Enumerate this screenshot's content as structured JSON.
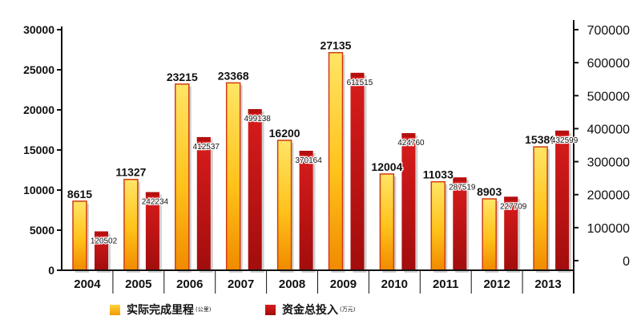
{
  "chart_data": {
    "type": "bar",
    "categories": [
      "2004",
      "2005",
      "2006",
      "2007",
      "2008",
      "2009",
      "2010",
      "2011",
      "2012",
      "2013"
    ],
    "series": [
      {
        "name": "实际完成里程",
        "unit": "(公里)",
        "axis": "left",
        "values": [
          8615,
          11327,
          23215,
          23368,
          16200,
          27135,
          12004,
          11033,
          8903,
          15386
        ],
        "labels": [
          "8615",
          "11327",
          "23215",
          "23368",
          "16200",
          "27135",
          "12004",
          "11033",
          "8903",
          "15386"
        ]
      },
      {
        "name": "资金总投入",
        "unit": "(万元)",
        "axis": "right",
        "values": [
          120502,
          242234,
          412537,
          499138,
          370164,
          611515,
          424760,
          287519,
          227709,
          432599
        ],
        "labels": [
          "120502",
          "242234",
          "412537",
          "499138",
          "370164",
          "611515",
          "424760",
          "287519",
          "227709",
          "432599"
        ]
      }
    ],
    "y_left": {
      "ylim": [
        0,
        30000
      ],
      "ticks": [
        0,
        5000,
        10000,
        15000,
        20000,
        25000,
        30000
      ],
      "tick_labels": [
        "0",
        "5000",
        "10000",
        "15000",
        "20000",
        "25000",
        "30000"
      ]
    },
    "y_right": {
      "ylim": [
        0,
        800000
      ],
      "ticks": [
        0,
        100000,
        200000,
        300000,
        400000,
        500000,
        600000,
        700000
      ],
      "tick_labels": [
        "0",
        "100000",
        "200000",
        "300000",
        "400000",
        "500000",
        "600000",
        "700000"
      ]
    },
    "title": "",
    "xlabel": "",
    "grid": false,
    "legend_position": "bottom",
    "colors": {
      "series1_top": "#ffe566",
      "series1_mid": "#ffc21a",
      "series1_bottom": "#f08a00",
      "series1_edge": "#d23b12",
      "series2_top": "#d91c1c",
      "series2_bottom": "#a20d0d",
      "axis": "#111111"
    }
  }
}
